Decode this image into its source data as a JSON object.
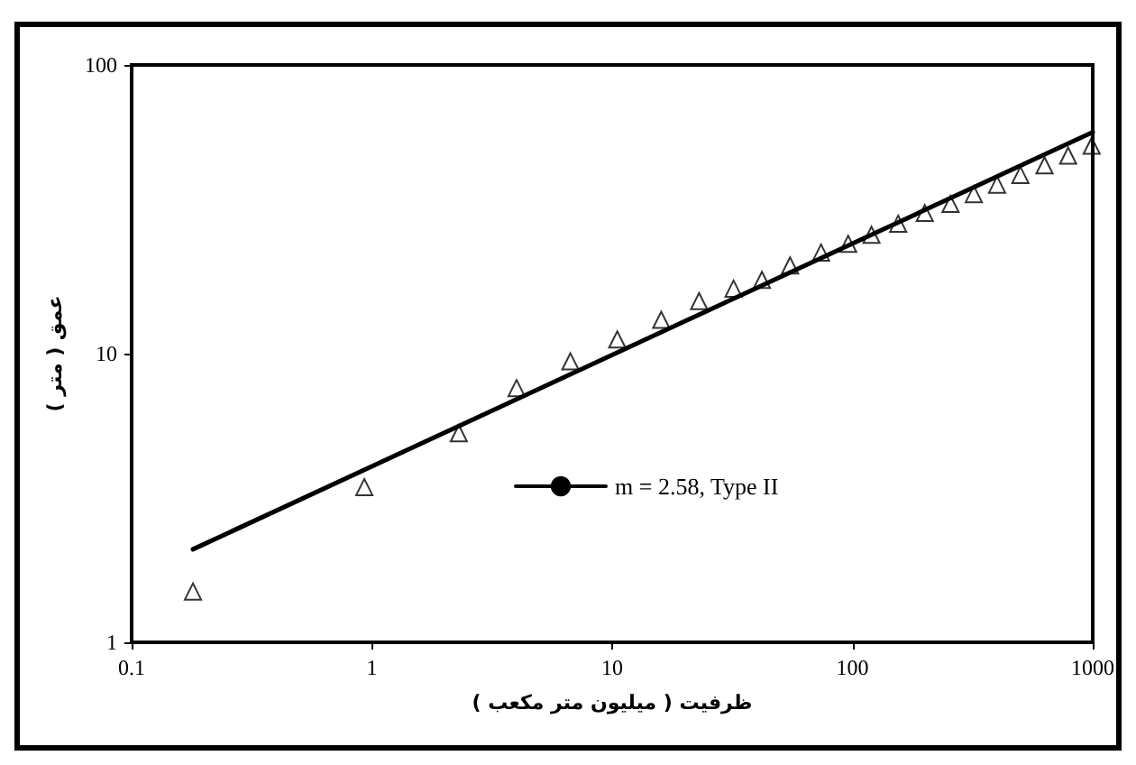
{
  "chart_data": {
    "type": "scatter",
    "xlabel": "ظرفیت ( میلیون متر مکعب )",
    "ylabel": "عمق ( متر )",
    "log": "xy",
    "grid": false,
    "legend": "bottom",
    "xlim": [
      0.1,
      1000
    ],
    "xticks": [
      0.1,
      1,
      10,
      100,
      1000
    ],
    "ylim": [
      1,
      100
    ],
    "yticks": [
      1,
      10,
      100
    ],
    "series": [
      {
        "type": "scatter",
        "marker": "triangle",
        "color": "#000000",
        "x": [
          0.18,
          0.93,
          2.3,
          4.0,
          6.7,
          10.5,
          16,
          23,
          32,
          42,
          55,
          74,
          96,
          120,
          155,
          200,
          256,
          320,
          400,
          500,
          630,
          790,
          990
        ],
        "values": [
          1.5,
          3.45,
          5.3,
          7.6,
          9.4,
          11.2,
          13.1,
          15.2,
          16.8,
          18,
          20.2,
          22.4,
          24,
          25.8,
          28.2,
          30.7,
          33,
          35.7,
          38.5,
          41.6,
          44.9,
          48.5,
          52.5
        ]
      },
      {
        "type": "line",
        "name": "m = 2.58, Type II",
        "marker": "none",
        "line_style": "solid",
        "color": "#000000",
        "x": [
          0.18,
          1000
        ],
        "values": [
          2.1,
          58.5
        ]
      }
    ]
  }
}
